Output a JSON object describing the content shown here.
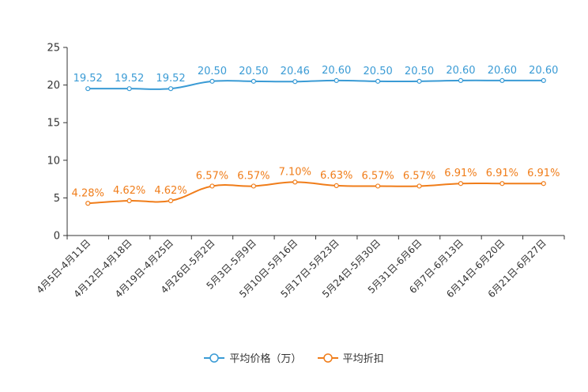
{
  "chart_data": {
    "type": "line",
    "title": "",
    "xlabel": "",
    "ylabel": "",
    "ylim": [
      0,
      25
    ],
    "yticks": [
      "0",
      "5",
      "10",
      "15",
      "20",
      "25"
    ],
    "grid": false,
    "legend_position": "bottom-center",
    "categories": [
      "4月5日-4月11日",
      "4月12日-4月18日",
      "4月19日-4月25日",
      "4月26日-5月2日",
      "5月3日-5月9日",
      "5月10日-5月16日",
      "5月17日-5月23日",
      "5月24日-5月30日",
      "5月31日-6月6日",
      "6月7日-6月13日",
      "6月14日-6月20日",
      "6月21日-6月27日"
    ],
    "series": [
      {
        "name": "平均价格（万）",
        "color": "#3a9bd5",
        "values": [
          19.52,
          19.52,
          19.52,
          20.5,
          20.5,
          20.46,
          20.6,
          20.5,
          20.5,
          20.6,
          20.6,
          20.6
        ],
        "labels": [
          "19.52",
          "19.52",
          "19.52",
          "20.50",
          "20.50",
          "20.46",
          "20.60",
          "20.50",
          "20.50",
          "20.60",
          "20.60",
          "20.60"
        ]
      },
      {
        "name": "平均折扣",
        "color": "#f07d1a",
        "values": [
          4.28,
          4.62,
          4.62,
          6.57,
          6.57,
          7.1,
          6.63,
          6.57,
          6.57,
          6.91,
          6.91,
          6.91
        ],
        "labels": [
          "4.28%",
          "4.62%",
          "4.62%",
          "6.57%",
          "6.57%",
          "7.10%",
          "6.63%",
          "6.57%",
          "6.57%",
          "6.91%",
          "6.91%",
          "6.91%"
        ]
      }
    ]
  }
}
